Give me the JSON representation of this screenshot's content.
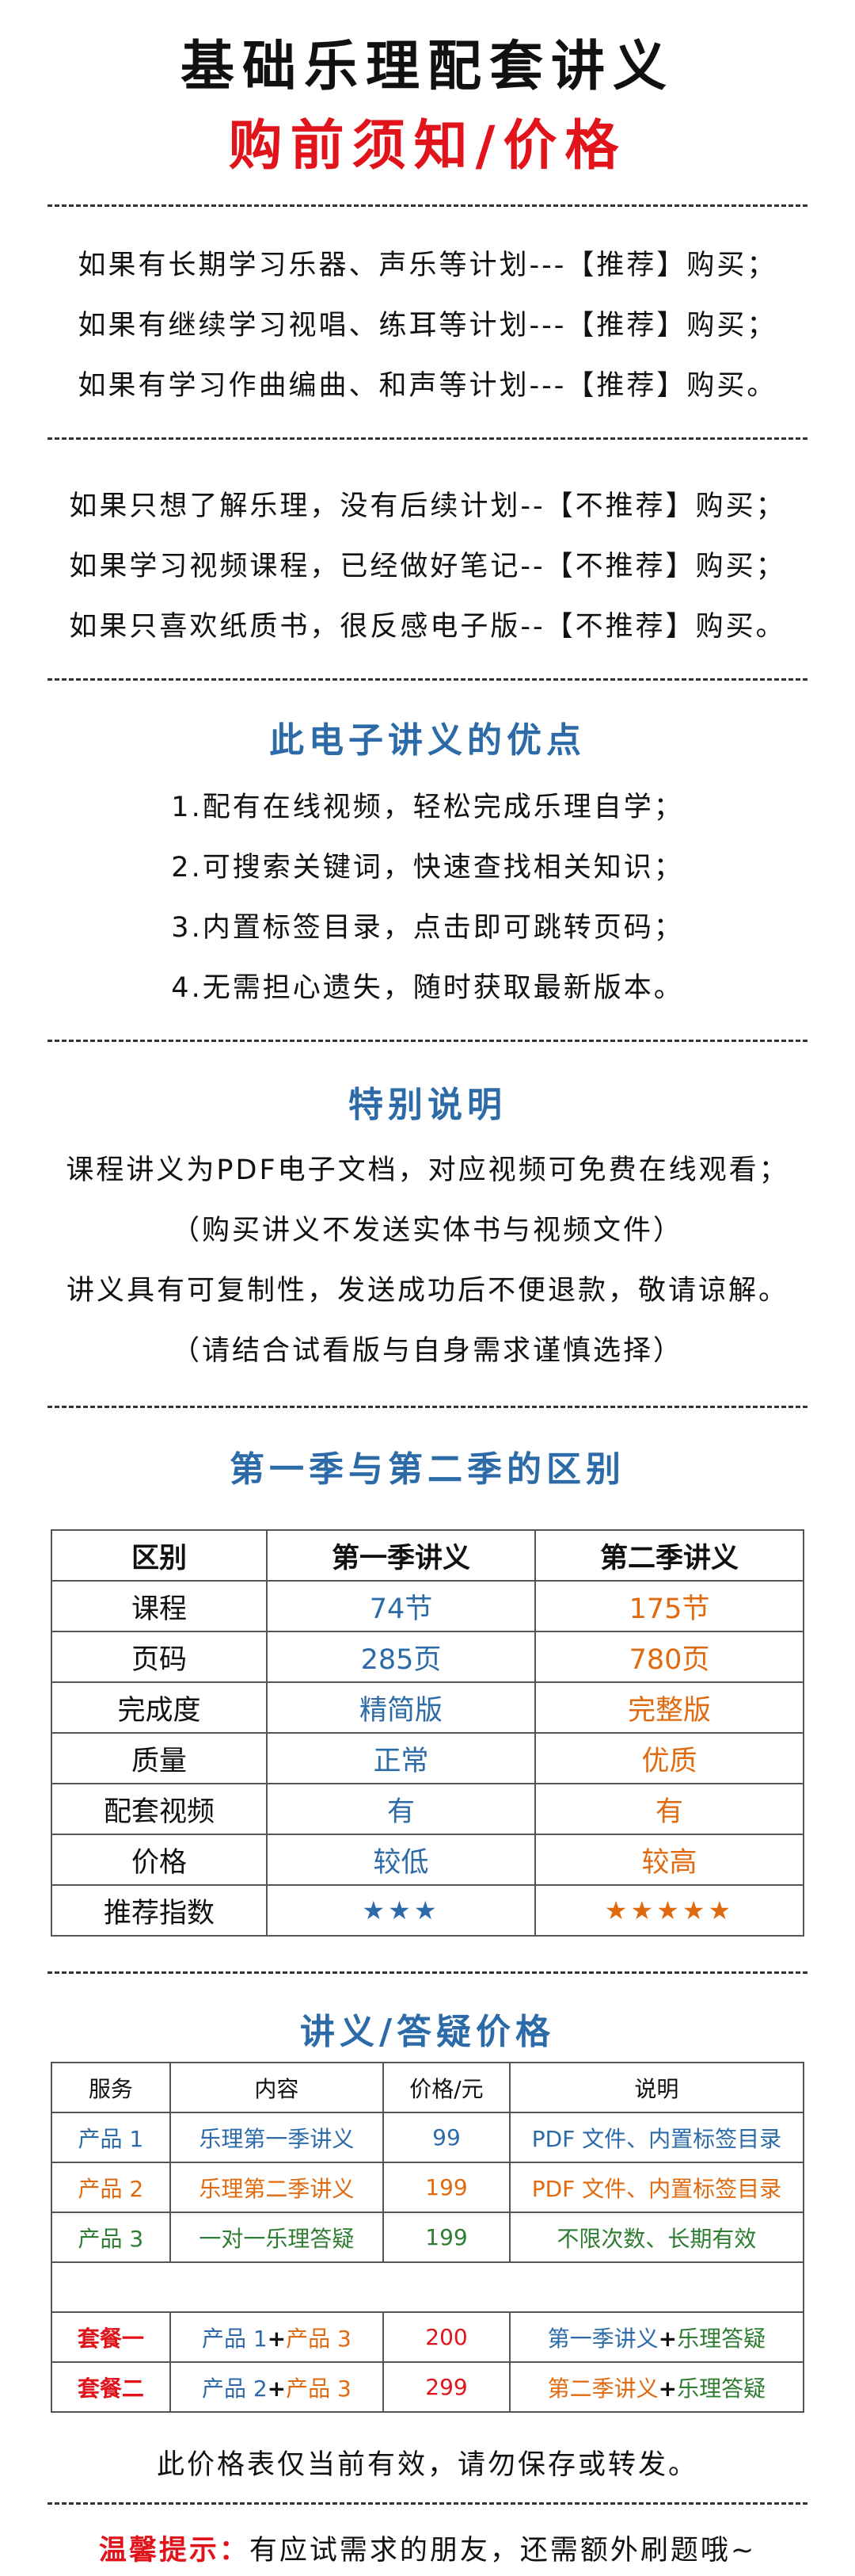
{
  "header": {
    "title": "基础乐理配套讲义",
    "subtitle": "购前须知/价格"
  },
  "recommend": [
    "如果有长期学习乐器、声乐等计划---【推荐】购买；",
    "如果有继续学习视唱、练耳等计划---【推荐】购买；",
    "如果有学习作曲编曲、和声等计划---【推荐】购买。"
  ],
  "not_recommend": [
    "如果只想了解乐理，没有后续计划--【不推荐】购买；",
    "如果学习视频课程，已经做好笔记--【不推荐】购买；",
    "如果只喜欢纸质书，很反感电子版--【不推荐】购买。"
  ],
  "advantages": {
    "heading": "此电子讲义的优点",
    "items": [
      "1.配有在线视频，轻松完成乐理自学；",
      "2.可搜索关键词，快速查找相关知识；",
      "3.内置标签目录，点击即可跳转页码；",
      "4.无需担心遗失，随时获取最新版本。"
    ]
  },
  "special": {
    "heading": "特别说明",
    "items": [
      "课程讲义为PDF电子文档，对应视频可免费在线观看；",
      "（购买讲义不发送实体书与视频文件）",
      "讲义具有可复制性，发送成功后不便退款，敬请谅解。",
      "（请结合试看版与自身需求谨慎选择）"
    ]
  },
  "compare": {
    "heading": "第一季与第二季的区别",
    "headers": [
      "区别",
      "第一季讲义",
      "第二季讲义"
    ],
    "rows": [
      [
        "课程",
        "74节",
        "175节"
      ],
      [
        "页码",
        "285页",
        "780页"
      ],
      [
        "完成度",
        "精简版",
        "完整版"
      ],
      [
        "质量",
        "正常",
        "优质"
      ],
      [
        "配套视频",
        "有",
        "有"
      ],
      [
        "价格",
        "较低",
        "较高"
      ],
      [
        "推荐指数",
        "★★★",
        "★★★★★"
      ]
    ],
    "colors": {
      "season1": "#2c6ba8",
      "season2": "#e06a10"
    }
  },
  "pricing": {
    "heading": "讲义/答疑价格",
    "headers": [
      "服务",
      "内容",
      "价格/元",
      "说明"
    ],
    "products": [
      [
        "产品 1",
        "乐理第一季讲义",
        "99",
        "PDF 文件、内置标签目录"
      ],
      [
        "产品 2",
        "乐理第二季讲义",
        "199",
        "PDF 文件、内置标签目录"
      ],
      [
        "产品 3",
        "一对一乐理答疑",
        "199",
        "不限次数、长期有效"
      ]
    ],
    "bundles": [
      {
        "name": "套餐一",
        "p_a": "产品 1",
        "plus": "+",
        "p_b": "产品 3",
        "price": "200",
        "d_a": "第一季讲义",
        "d_plus": "+",
        "d_b": "乐理答疑"
      },
      {
        "name": "套餐二",
        "p_a": "产品 2",
        "plus": "+",
        "p_b": "产品 3",
        "price": "299",
        "d_a": "第二季讲义",
        "d_plus": "+",
        "d_b": "乐理答疑"
      }
    ],
    "footnote": "此价格表仅当前有效，请勿保存或转发。"
  },
  "tip": {
    "label": "温馨提示：",
    "text": "有应试需求的朋友，还需额外刷题哦~"
  }
}
